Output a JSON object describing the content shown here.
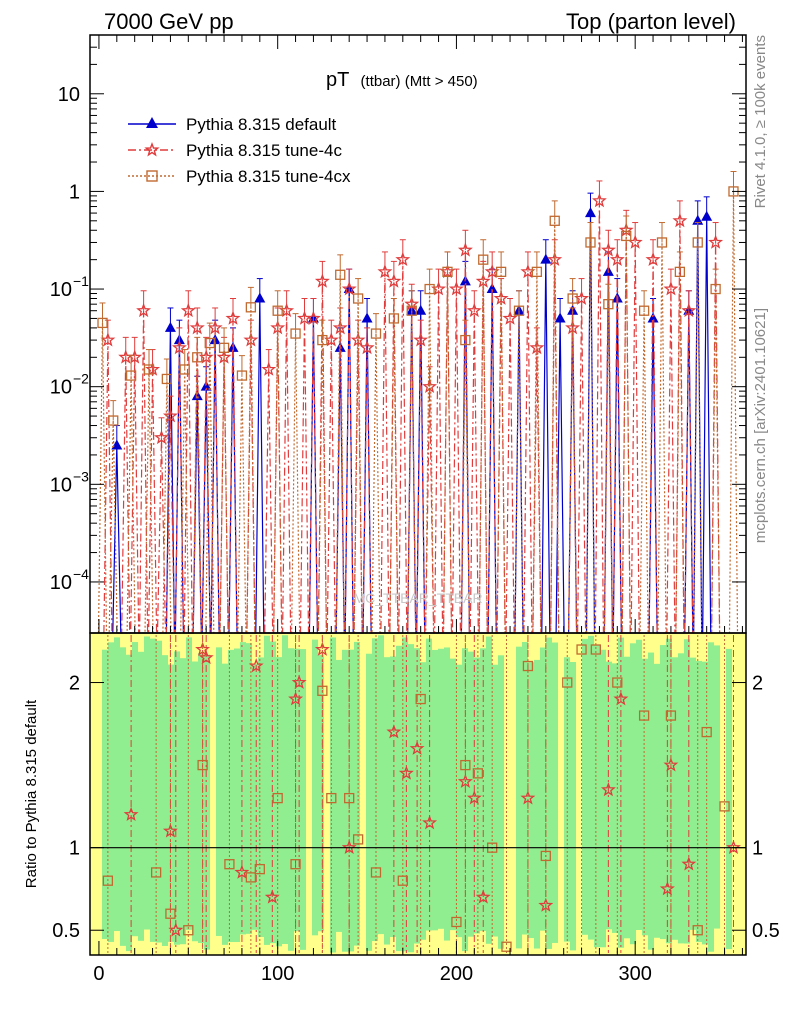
{
  "header": {
    "left": "7000 GeV pp",
    "right": "Top (parton level)"
  },
  "side_labels": {
    "rivet": "Rivet 4.1.0, ≥ 100k events",
    "mcplots": "mcplots.cern.ch [arXiv:2401.10621]"
  },
  "watermark": "MC_TTBAR_TTBAR",
  "chart_data": {
    "type": "line",
    "title": "pT (ttbar) (Mtt > 450)",
    "title_main": "pT",
    "title_sub": "(ttbar) (Mtt > 450)",
    "xlabel": "",
    "xlim": [
      -5,
      362
    ],
    "x_ticks": [
      0,
      100,
      200,
      300
    ],
    "main_panel": {
      "yscale": "log",
      "ylim": [
        3e-05,
        40
      ],
      "y_ticks": [
        {
          "value": 0.0001,
          "label_base": "10",
          "label_exp": "−4"
        },
        {
          "value": 0.001,
          "label_base": "10",
          "label_exp": "−3"
        },
        {
          "value": 0.01,
          "label_base": "10",
          "label_exp": "−2"
        },
        {
          "value": 0.1,
          "label_base": "10",
          "label_exp": "−1"
        },
        {
          "value": 1,
          "label_base": "1",
          "label_exp": ""
        },
        {
          "value": 10,
          "label_base": "10",
          "label_exp": ""
        }
      ]
    },
    "ratio_panel": {
      "ylabel": "Ratio to Pythia 8.315 default",
      "ylim": [
        0.35,
        2.3
      ],
      "y_ticks": [
        0.5,
        1,
        2
      ],
      "reference": 1
    },
    "legend": {
      "placement": "top-left",
      "entries": [
        {
          "label": "Pythia 8.315 default",
          "color": "#0000cc",
          "marker": "triangle",
          "line": "solid"
        },
        {
          "label": "Pythia 8.315 tune-4c",
          "color": "#e03c3c",
          "marker": "star",
          "line": "dashdot"
        },
        {
          "label": "Pythia 8.315 tune-4cx",
          "color": "#c06a30",
          "marker": "square",
          "line": "dotted"
        }
      ]
    },
    "series": [
      {
        "name": "Pythia 8.315 default",
        "color": "#0000cc",
        "x": [
          10,
          40,
          45,
          55,
          60,
          65,
          75,
          90,
          120,
          135,
          140,
          150,
          175,
          180,
          205,
          220,
          235,
          250,
          258,
          265,
          275,
          285,
          290,
          310,
          330,
          335,
          340
        ],
        "y": [
          0.0025,
          0.04,
          0.03,
          0.008,
          0.01,
          0.03,
          0.025,
          0.08,
          0.05,
          0.025,
          0.1,
          0.05,
          0.06,
          0.06,
          0.12,
          0.1,
          0.06,
          0.2,
          0.05,
          0.06,
          0.6,
          0.15,
          0.08,
          0.05,
          0.06,
          0.5,
          0.55
        ]
      },
      {
        "name": "Pythia 8.315 tune-4c",
        "color": "#e03c3c",
        "x": [
          5,
          15,
          20,
          25,
          30,
          35,
          40,
          45,
          50,
          55,
          60,
          65,
          70,
          75,
          85,
          95,
          100,
          105,
          115,
          120,
          125,
          130,
          135,
          140,
          145,
          150,
          160,
          165,
          170,
          175,
          180,
          185,
          190,
          195,
          200,
          205,
          210,
          215,
          220,
          225,
          230,
          240,
          245,
          255,
          265,
          270,
          280,
          285,
          290,
          295,
          300,
          310,
          320,
          325,
          330,
          345
        ],
        "y": [
          0.03,
          0.02,
          0.02,
          0.06,
          0.015,
          0.003,
          0.005,
          0.025,
          0.06,
          0.04,
          0.02,
          0.04,
          0.02,
          0.05,
          0.03,
          0.015,
          0.04,
          0.06,
          0.05,
          0.05,
          0.12,
          0.03,
          0.04,
          0.1,
          0.03,
          0.025,
          0.15,
          0.12,
          0.2,
          0.07,
          0.03,
          0.01,
          0.1,
          0.15,
          0.1,
          0.25,
          0.06,
          0.12,
          0.15,
          0.08,
          0.05,
          0.15,
          0.025,
          0.2,
          0.04,
          0.08,
          0.8,
          0.25,
          0.2,
          0.4,
          0.3,
          0.2,
          0.1,
          0.5,
          0.06,
          0.3
        ]
      },
      {
        "name": "Pythia 8.315 tune-4cx",
        "color": "#c06a30",
        "x": [
          2,
          8,
          18,
          28,
          38,
          48,
          55,
          62,
          70,
          80,
          85,
          100,
          110,
          125,
          135,
          145,
          155,
          165,
          175,
          185,
          195,
          205,
          215,
          225,
          235,
          245,
          255,
          265,
          275,
          285,
          295,
          305,
          315,
          325,
          335,
          345,
          355
        ],
        "y": [
          0.045,
          0.0045,
          0.013,
          0.015,
          0.012,
          0.015,
          0.02,
          0.028,
          0.025,
          0.013,
          0.065,
          0.06,
          0.035,
          0.03,
          0.14,
          0.08,
          0.035,
          0.05,
          0.06,
          0.1,
          0.15,
          0.03,
          0.2,
          0.15,
          0.06,
          0.15,
          0.5,
          0.08,
          0.3,
          0.07,
          0.35,
          0.06,
          0.3,
          0.15,
          0.3,
          0.1,
          1.0
        ]
      }
    ],
    "ratio_series": [
      {
        "name": "Pythia 8.315 tune-4c",
        "x": [
          18,
          40,
          43,
          58,
          60,
          80,
          88,
          97,
          110,
          112,
          125,
          140,
          165,
          172,
          178,
          185,
          205,
          210,
          215,
          240,
          250,
          285,
          292,
          318,
          320,
          330,
          355
        ],
        "y": [
          1.2,
          1.1,
          0.5,
          2.2,
          2.15,
          0.85,
          2.1,
          0.7,
          1.9,
          2.0,
          2.2,
          1.0,
          1.7,
          1.45,
          1.6,
          1.15,
          1.4,
          1.3,
          0.7,
          1.3,
          0.65,
          1.35,
          1.9,
          0.75,
          1.5,
          0.9,
          1.0
        ]
      },
      {
        "name": "Pythia 8.315 tune-4cx",
        "x": [
          5,
          32,
          40,
          50,
          58,
          73,
          85,
          90,
          100,
          110,
          125,
          130,
          140,
          145,
          155,
          170,
          180,
          200,
          205,
          212,
          220,
          228,
          240,
          250,
          262,
          270,
          278,
          290,
          305,
          320,
          335,
          340,
          350
        ],
        "y": [
          0.8,
          0.85,
          0.6,
          0.5,
          1.5,
          0.9,
          0.82,
          0.87,
          1.3,
          0.9,
          1.95,
          1.3,
          1.3,
          1.05,
          0.85,
          0.8,
          1.9,
          0.55,
          1.5,
          1.45,
          1.0,
          0.4,
          2.1,
          0.95,
          2.0,
          2.2,
          2.2,
          2.0,
          1.8,
          1.8,
          0.5,
          1.7,
          1.25
        ]
      }
    ]
  }
}
